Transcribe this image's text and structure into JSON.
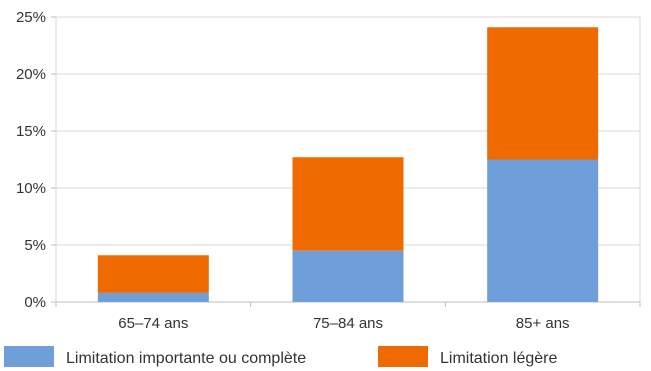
{
  "chart_data": {
    "type": "bar",
    "stacked": true,
    "categories": [
      "65–74 ans",
      "75–84 ans",
      "85+ ans"
    ],
    "series": [
      {
        "name": "Limitation importante ou complète",
        "values": [
          0.8,
          4.5,
          12.5
        ],
        "color": "#6f9fd8"
      },
      {
        "name": "Limitation légère",
        "values": [
          3.3,
          8.2,
          11.6
        ],
        "color": "#ef6a00"
      }
    ],
    "ylim": [
      0,
      25
    ],
    "yticks": [
      0,
      5,
      10,
      15,
      20,
      25
    ],
    "ytick_labels": [
      "0%",
      "5%",
      "10%",
      "15%",
      "20%",
      "25%"
    ],
    "grid": true,
    "legend_position": "bottom"
  }
}
